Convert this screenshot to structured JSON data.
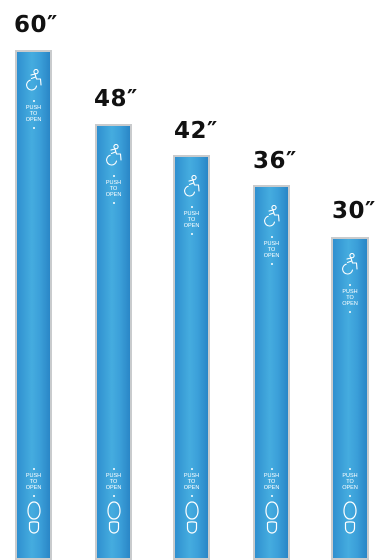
{
  "bars": [
    {
      "size_label": "60″",
      "top_text": [
        "PUSH",
        "TO",
        "OPEN"
      ],
      "bottom_text": [
        "PUSH",
        "TO",
        "OPEN"
      ],
      "icons": [
        "accessible-icon",
        "footprint-icon"
      ]
    },
    {
      "size_label": "48″",
      "top_text": [
        "PUSH",
        "TO",
        "OPEN"
      ],
      "bottom_text": [
        "PUSH",
        "TO",
        "OPEN"
      ],
      "icons": [
        "accessible-icon",
        "footprint-icon"
      ]
    },
    {
      "size_label": "42″",
      "top_text": [
        "PUSH",
        "TO",
        "OPEN"
      ],
      "bottom_text": [
        "PUSH",
        "TO",
        "OPEN"
      ],
      "icons": [
        "accessible-icon",
        "footprint-icon"
      ]
    },
    {
      "size_label": "36″",
      "top_text": [
        "PUSH",
        "TO",
        "OPEN"
      ],
      "bottom_text": [
        "PUSH",
        "TO",
        "OPEN"
      ],
      "icons": [
        "accessible-icon",
        "footprint-icon"
      ]
    },
    {
      "size_label": "30″",
      "top_text": [
        "PUSH",
        "TO",
        "OPEN"
      ],
      "bottom_text": [
        "PUSH",
        "TO",
        "OPEN"
      ],
      "icons": [
        "accessible-icon",
        "footprint-icon"
      ]
    }
  ],
  "colors": {
    "bar_blue": "#3b9fd9",
    "bar_border": "#c9cbcd",
    "label_text": "#111111",
    "icon_white": "#ffffff"
  }
}
